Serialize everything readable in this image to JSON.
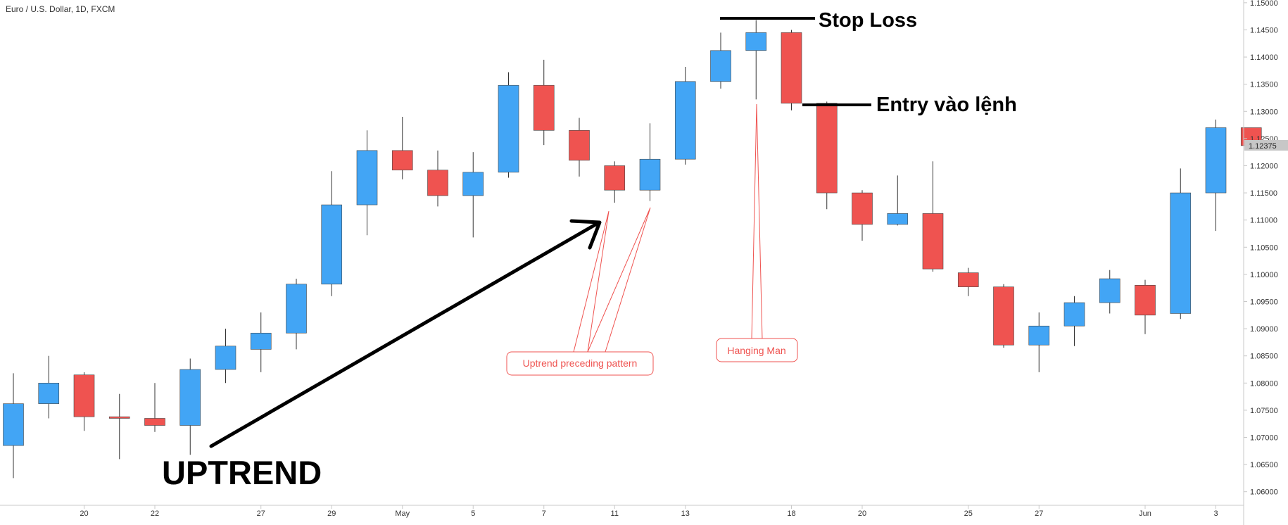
{
  "header": {
    "symbol": "Euro / U.S. Dollar, 1D, FXCM"
  },
  "annotations": {
    "stop_loss": "Stop Loss",
    "entry": "Entry vào lệnh",
    "uptrend": "UPTREND",
    "hanging_man": "Hanging Man",
    "uptrend_pattern": "Uptrend preceding pattern"
  },
  "price_tag": "1.12375",
  "colors": {
    "bull": "#42a5f5",
    "bear": "#ef5350",
    "axis": "#c8c8c8",
    "callout": "#ef5350"
  },
  "chart_data": {
    "type": "candlestick",
    "ylim": [
      1.0575,
      1.1505
    ],
    "y_ticks": [
      "1.15000",
      "1.14500",
      "1.14000",
      "1.13500",
      "1.13000",
      "1.12500",
      "1.12000",
      "1.11500",
      "1.11000",
      "1.10500",
      "1.10000",
      "1.09500",
      "1.09000",
      "1.08500",
      "1.08000",
      "1.07500",
      "1.07000",
      "1.06500",
      "1.06000"
    ],
    "x_ticks": [
      {
        "label": "20",
        "index": 2
      },
      {
        "label": "22",
        "index": 4
      },
      {
        "label": "27",
        "index": 7
      },
      {
        "label": "29",
        "index": 9
      },
      {
        "label": "May",
        "index": 11
      },
      {
        "label": "5",
        "index": 13
      },
      {
        "label": "7",
        "index": 15
      },
      {
        "label": "11",
        "index": 17
      },
      {
        "label": "13",
        "index": 19
      },
      {
        "label": "18",
        "index": 22
      },
      {
        "label": "20",
        "index": 24
      },
      {
        "label": "25",
        "index": 27
      },
      {
        "label": "27",
        "index": 29
      },
      {
        "label": "Jun",
        "index": 32
      },
      {
        "label": "3",
        "index": 34
      }
    ],
    "candles": [
      {
        "o": 1.0685,
        "h": 1.0818,
        "l": 1.0625,
        "c": 1.0762
      },
      {
        "o": 1.0762,
        "h": 1.085,
        "l": 1.0735,
        "c": 1.08
      },
      {
        "o": 1.0815,
        "h": 1.082,
        "l": 1.0712,
        "c": 1.0738
      },
      {
        "o": 1.0738,
        "h": 1.078,
        "l": 1.066,
        "c": 1.0735
      },
      {
        "o": 1.0735,
        "h": 1.08,
        "l": 1.071,
        "c": 1.0722
      },
      {
        "o": 1.0722,
        "h": 1.0845,
        "l": 1.0668,
        "c": 1.0825
      },
      {
        "o": 1.0825,
        "h": 1.09,
        "l": 1.08,
        "c": 1.0868
      },
      {
        "o": 1.0862,
        "h": 1.093,
        "l": 1.082,
        "c": 1.0892
      },
      {
        "o": 1.0892,
        "h": 1.0992,
        "l": 1.0862,
        "c": 1.0982
      },
      {
        "o": 1.0982,
        "h": 1.119,
        "l": 1.096,
        "c": 1.1128
      },
      {
        "o": 1.1128,
        "h": 1.1265,
        "l": 1.1072,
        "c": 1.1228
      },
      {
        "o": 1.1228,
        "h": 1.129,
        "l": 1.1175,
        "c": 1.1192
      },
      {
        "o": 1.1192,
        "h": 1.1228,
        "l": 1.1125,
        "c": 1.1145
      },
      {
        "o": 1.1145,
        "h": 1.1225,
        "l": 1.1068,
        "c": 1.1188
      },
      {
        "o": 1.1188,
        "h": 1.1372,
        "l": 1.1178,
        "c": 1.1348
      },
      {
        "o": 1.1348,
        "h": 1.1395,
        "l": 1.1238,
        "c": 1.1265
      },
      {
        "o": 1.1265,
        "h": 1.1288,
        "l": 1.118,
        "c": 1.121
      },
      {
        "o": 1.12,
        "h": 1.1208,
        "l": 1.1132,
        "c": 1.1155
      },
      {
        "o": 1.1155,
        "h": 1.1278,
        "l": 1.1135,
        "c": 1.1212
      },
      {
        "o": 1.1212,
        "h": 1.1382,
        "l": 1.1202,
        "c": 1.1355
      },
      {
        "o": 1.1355,
        "h": 1.1445,
        "l": 1.1342,
        "c": 1.1412
      },
      {
        "o": 1.1412,
        "h": 1.1468,
        "l": 1.1322,
        "c": 1.1445
      },
      {
        "o": 1.1445,
        "h": 1.145,
        "l": 1.1302,
        "c": 1.1315
      },
      {
        "o": 1.1315,
        "h": 1.1318,
        "l": 1.112,
        "c": 1.115
      },
      {
        "o": 1.115,
        "h": 1.1155,
        "l": 1.1062,
        "c": 1.1092
      },
      {
        "o": 1.1092,
        "h": 1.1182,
        "l": 1.109,
        "c": 1.1112
      },
      {
        "o": 1.1112,
        "h": 1.1208,
        "l": 1.1005,
        "c": 1.101
      },
      {
        "o": 1.1003,
        "h": 1.1012,
        "l": 1.096,
        "c": 1.0977
      },
      {
        "o": 1.0977,
        "h": 1.0982,
        "l": 1.0865,
        "c": 1.087
      },
      {
        "o": 1.087,
        "h": 1.093,
        "l": 1.082,
        "c": 1.0905
      },
      {
        "o": 1.0905,
        "h": 1.096,
        "l": 1.0868,
        "c": 1.0948
      },
      {
        "o": 1.0948,
        "h": 1.1008,
        "l": 1.0928,
        "c": 1.0992
      },
      {
        "o": 1.098,
        "h": 1.099,
        "l": 1.089,
        "c": 1.0925
      },
      {
        "o": 1.0928,
        "h": 1.1195,
        "l": 1.0918,
        "c": 1.115
      },
      {
        "o": 1.115,
        "h": 1.1285,
        "l": 1.108,
        "c": 1.127
      },
      {
        "o": 1.127,
        "h": 1.127,
        "l": 1.1237,
        "c": 1.1237
      }
    ]
  }
}
